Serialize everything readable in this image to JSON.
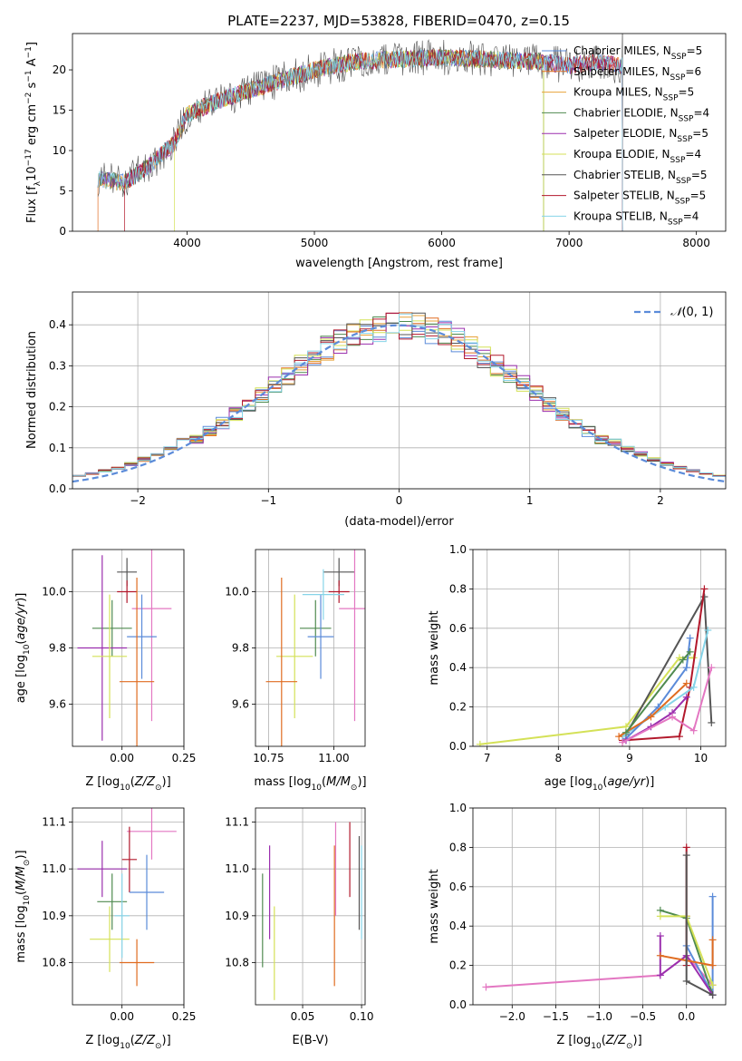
{
  "figure": {
    "title": "PLATE=2237, MJD=53828, FIBERID=0470, z=0.15"
  },
  "chart_data": [
    {
      "id": "spectrum",
      "type": "line",
      "xlabel": "wavelength [Angstrom, rest frame]",
      "ylabel": "Flux [f_λ 10^-17 erg cm^-2 s^-1 A^-1]",
      "xlim": [
        3100,
        8230
      ],
      "ylim": [
        0,
        24.5
      ],
      "xticks": [
        4000,
        5000,
        6000,
        7000,
        8000
      ],
      "yticks": [
        0,
        5,
        10,
        15,
        20
      ],
      "grid": false,
      "legend_position": "top-right",
      "legend": [
        {
          "name": "Chabrier MILES, N_SSP=5",
          "color": "#5b8bd9"
        },
        {
          "name": "Salpeter MILES, N_SSP=6",
          "color": "#e06c20"
        },
        {
          "name": "Kroupa MILES, N_SSP=5",
          "color": "#e8a33a"
        },
        {
          "name": "Chabrier ELODIE, N_SSP=4",
          "color": "#4f8a4f"
        },
        {
          "name": "Salpeter ELODIE, N_SSP=5",
          "color": "#9b2fae"
        },
        {
          "name": "Kroupa ELODIE, N_SSP=4",
          "color": "#d4e157"
        },
        {
          "name": "Chabrier STELIB, N_SSP=5",
          "color": "#555555"
        },
        {
          "name": "Salpeter STELIB, N_SSP=5",
          "color": "#b2182b"
        },
        {
          "name": "Kroupa STELIB, N_SSP=4",
          "color": "#86d4e8"
        }
      ],
      "data_trend": {
        "x": [
          3300,
          3500,
          3700,
          3900,
          4000,
          4300,
          4600,
          5000,
          5300,
          5600,
          6000,
          6400,
          6800,
          7000,
          7200,
          7400
        ],
        "y": [
          6.5,
          6.0,
          8.0,
          11.0,
          14.5,
          16.5,
          18.0,
          20.0,
          21.0,
          21.3,
          21.5,
          21.3,
          21.0,
          20.5,
          21.0,
          20.5
        ]
      }
    },
    {
      "id": "residuals",
      "type": "histogram",
      "xlabel": "(data-model)/error",
      "ylabel": "Normed distribution",
      "xlim": [
        -2.5,
        2.5
      ],
      "ylim": [
        0,
        0.48
      ],
      "xticks": [
        -2,
        -1,
        0,
        1,
        2
      ],
      "yticks": [
        0.0,
        0.1,
        0.2,
        0.3,
        0.4
      ],
      "grid": true,
      "legend_position": "top-right",
      "legend": [
        {
          "name": "N(0,1)",
          "color": "#5b8bd9",
          "style": "dashed"
        }
      ],
      "bin_width": 0.1
    },
    {
      "id": "age-vs-Z",
      "type": "scatter",
      "xlabel": "Z [log10(Z/Z☉)]",
      "ylabel": "age [log10(age/yr)]",
      "xlim": [
        -0.2,
        0.25
      ],
      "ylim": [
        9.45,
        10.15
      ],
      "xticks": [
        0.0,
        0.25
      ],
      "yticks": [
        9.6,
        9.8,
        10.0
      ],
      "grid": true,
      "points": [
        {
          "x": 0.02,
          "y": 10.07,
          "xerr": 0.04,
          "yerr": 0.05,
          "color": "#555555"
        },
        {
          "x": 0.02,
          "y": 10.0,
          "xerr": 0.04,
          "yerr": 0.04,
          "color": "#b2182b"
        },
        {
          "x": 0.12,
          "y": 9.94,
          "xerr": 0.08,
          "yerr": 0.4,
          "color": "#e377c2"
        },
        {
          "x": -0.04,
          "y": 9.87,
          "xerr": 0.08,
          "yerr": 0.1,
          "color": "#4f8a4f"
        },
        {
          "x": 0.08,
          "y": 9.84,
          "xerr": 0.06,
          "yerr": 0.15,
          "color": "#5b8bd9"
        },
        {
          "x": -0.08,
          "y": 9.8,
          "xerr": 0.1,
          "yerr": 0.33,
          "color": "#9b2fae"
        },
        {
          "x": -0.05,
          "y": 9.77,
          "xerr": 0.07,
          "yerr": 0.22,
          "color": "#d4e157"
        },
        {
          "x": 0.06,
          "y": 9.68,
          "xerr": 0.07,
          "yerr": 0.37,
          "color": "#e06c20"
        }
      ]
    },
    {
      "id": "age-vs-mass",
      "type": "scatter",
      "xlabel": "mass [log10(M/M☉)]",
      "ylabel": "",
      "xlim": [
        10.7,
        11.12
      ],
      "ylim": [
        9.45,
        10.15
      ],
      "xticks": [
        10.75,
        11.0
      ],
      "yticks": [
        9.6,
        9.8,
        10.0
      ],
      "grid": true,
      "points": [
        {
          "x": 11.02,
          "y": 10.07,
          "xerr": 0.06,
          "yerr": 0.05,
          "color": "#555555"
        },
        {
          "x": 11.02,
          "y": 10.0,
          "xerr": 0.04,
          "yerr": 0.04,
          "color": "#b2182b"
        },
        {
          "x": 11.08,
          "y": 9.94,
          "xerr": 0.06,
          "yerr": 0.4,
          "color": "#e377c2"
        },
        {
          "x": 10.93,
          "y": 9.87,
          "xerr": 0.06,
          "yerr": 0.1,
          "color": "#4f8a4f"
        },
        {
          "x": 10.95,
          "y": 9.84,
          "xerr": 0.05,
          "yerr": 0.15,
          "color": "#5b8bd9"
        },
        {
          "x": 10.96,
          "y": 9.99,
          "xerr": 0.08,
          "yerr": 0.09,
          "color": "#86d4e8"
        },
        {
          "x": 10.85,
          "y": 9.77,
          "xerr": 0.07,
          "yerr": 0.22,
          "color": "#d4e157"
        },
        {
          "x": 10.8,
          "y": 9.68,
          "xerr": 0.06,
          "yerr": 0.37,
          "color": "#e06c20"
        }
      ]
    },
    {
      "id": "weight-vs-age",
      "type": "line",
      "xlabel": "age [log10(age/yr)]",
      "ylabel": "mass weight",
      "xlim": [
        6.8,
        10.35
      ],
      "ylim": [
        0,
        1
      ],
      "xticks": [
        7,
        8,
        9,
        10
      ],
      "yticks": [
        0.0,
        0.2,
        0.4,
        0.6,
        0.8,
        1.0
      ],
      "grid": true,
      "series": [
        {
          "color": "#d4e157",
          "x": [
            6.9,
            8.95,
            9.7,
            9.9
          ],
          "y": [
            0.01,
            0.1,
            0.45,
            0.45
          ]
        },
        {
          "color": "#555555",
          "x": [
            8.95,
            10.05,
            10.15
          ],
          "y": [
            0.06,
            0.76,
            0.12
          ]
        },
        {
          "color": "#b2182b",
          "x": [
            8.9,
            9.7,
            9.85,
            10.05
          ],
          "y": [
            0.03,
            0.05,
            0.3,
            0.8
          ]
        },
        {
          "color": "#86d4e8",
          "x": [
            8.9,
            9.5,
            9.9,
            10.1
          ],
          "y": [
            0.05,
            0.2,
            0.3,
            0.59
          ]
        },
        {
          "color": "#5b8bd9",
          "x": [
            8.95,
            9.4,
            9.8,
            9.85
          ],
          "y": [
            0.04,
            0.2,
            0.4,
            0.55
          ]
        },
        {
          "color": "#9b2fae",
          "x": [
            8.95,
            9.3,
            9.6,
            9.8
          ],
          "y": [
            0.03,
            0.1,
            0.17,
            0.25
          ]
        },
        {
          "color": "#e377c2",
          "x": [
            8.9,
            9.6,
            9.9,
            10.15
          ],
          "y": [
            0.02,
            0.15,
            0.08,
            0.4
          ]
        },
        {
          "color": "#e06c20",
          "x": [
            8.85,
            9.3,
            9.8
          ],
          "y": [
            0.05,
            0.15,
            0.32
          ]
        },
        {
          "color": "#4f8a4f",
          "x": [
            8.95,
            9.75,
            9.85
          ],
          "y": [
            0.07,
            0.44,
            0.48
          ]
        }
      ]
    },
    {
      "id": "mass-vs-Z",
      "type": "scatter",
      "xlabel": "Z [log10(Z/Z☉)]",
      "ylabel": "mass [log10(M/M☉)]",
      "xlim": [
        -0.2,
        0.25
      ],
      "ylim": [
        10.71,
        11.13
      ],
      "xticks": [
        0.0,
        0.25
      ],
      "yticks": [
        10.8,
        10.9,
        11.0,
        11.1
      ],
      "grid": true,
      "points": [
        {
          "x": 0.12,
          "y": 11.08,
          "xerr": 0.1,
          "yerr": 0.06,
          "color": "#e377c2"
        },
        {
          "x": 0.03,
          "y": 11.02,
          "xerr": 0.03,
          "yerr": 0.07,
          "color": "#b2182b"
        },
        {
          "x": -0.08,
          "y": 11.0,
          "xerr": 0.1,
          "yerr": 0.06,
          "color": "#9b2fae"
        },
        {
          "x": 0.1,
          "y": 10.95,
          "xerr": 0.07,
          "yerr": 0.08,
          "color": "#5b8bd9"
        },
        {
          "x": -0.04,
          "y": 10.93,
          "xerr": 0.06,
          "yerr": 0.06,
          "color": "#4f8a4f"
        },
        {
          "x": -0.05,
          "y": 10.85,
          "xerr": 0.08,
          "yerr": 0.07,
          "color": "#d4e157"
        },
        {
          "x": 0.06,
          "y": 10.8,
          "xerr": 0.07,
          "yerr": 0.05,
          "color": "#e06c20"
        },
        {
          "x": 0.0,
          "y": 10.9,
          "xerr": 0.03,
          "yerr": 0.09,
          "color": "#86d4e8"
        }
      ]
    },
    {
      "id": "mass-vs-EBV",
      "type": "scatter",
      "xlabel": "E(B-V)",
      "ylabel": "",
      "xlim": [
        0.01,
        0.103
      ],
      "ylim": [
        10.71,
        11.13
      ],
      "xticks": [
        0.05,
        0.1
      ],
      "yticks": [
        10.8,
        10.9,
        11.0,
        11.1
      ],
      "grid": true,
      "points": [
        {
          "x": 0.016,
          "y": 10.89,
          "yerr": 0.1,
          "color": "#4f8a4f"
        },
        {
          "x": 0.022,
          "y": 10.95,
          "yerr": 0.1,
          "color": "#9b2fae"
        },
        {
          "x": 0.026,
          "y": 10.82,
          "yerr": 0.1,
          "color": "#d4e157"
        },
        {
          "x": 0.077,
          "y": 10.9,
          "yerr": 0.15,
          "color": "#e06c20"
        },
        {
          "x": 0.078,
          "y": 11.0,
          "yerr": 0.1,
          "color": "#e377c2"
        },
        {
          "x": 0.09,
          "y": 11.02,
          "yerr": 0.08,
          "color": "#b2182b"
        },
        {
          "x": 0.098,
          "y": 10.97,
          "yerr": 0.1,
          "color": "#555555"
        },
        {
          "x": 0.1,
          "y": 10.95,
          "yerr": 0.1,
          "color": "#86d4e8"
        }
      ]
    },
    {
      "id": "weight-vs-Z",
      "type": "line",
      "xlabel": "Z [log10(Z/Z☉)]",
      "ylabel": "mass weight",
      "xlim": [
        -2.45,
        0.45
      ],
      "ylim": [
        0,
        1
      ],
      "xticks": [
        -2.0,
        -1.5,
        -1.0,
        -0.5,
        0.0
      ],
      "yticks": [
        0.0,
        0.2,
        0.4,
        0.6,
        0.8,
        1.0
      ],
      "grid": true,
      "series": [
        {
          "color": "#e377c2",
          "x": [
            -2.3,
            -0.3,
            0.0,
            0.3
          ],
          "y": [
            0.09,
            0.15,
            0.25,
            0.1
          ]
        },
        {
          "color": "#b2182b",
          "x": [
            0.0,
            0.0,
            0.0
          ],
          "y": [
            0.8,
            0.45,
            0.2
          ]
        },
        {
          "color": "#5b8bd9",
          "x": [
            0.3,
            0.3,
            0.0
          ],
          "y": [
            0.55,
            0.05,
            0.3
          ]
        },
        {
          "color": "#4f8a4f",
          "x": [
            -0.3,
            0.0,
            0.3
          ],
          "y": [
            0.48,
            0.44,
            0.05
          ]
        },
        {
          "color": "#d4e157",
          "x": [
            -0.3,
            0.0,
            0.3
          ],
          "y": [
            0.45,
            0.45,
            0.1
          ]
        },
        {
          "color": "#9b2fae",
          "x": [
            -0.3,
            -0.3,
            0.0,
            0.3
          ],
          "y": [
            0.35,
            0.15,
            0.25,
            0.05
          ]
        },
        {
          "color": "#e06c20",
          "x": [
            -0.3,
            0.3,
            0.3
          ],
          "y": [
            0.25,
            0.2,
            0.33
          ]
        },
        {
          "color": "#555555",
          "x": [
            0.0,
            0.0,
            0.3
          ],
          "y": [
            0.76,
            0.12,
            0.05
          ]
        }
      ]
    }
  ]
}
